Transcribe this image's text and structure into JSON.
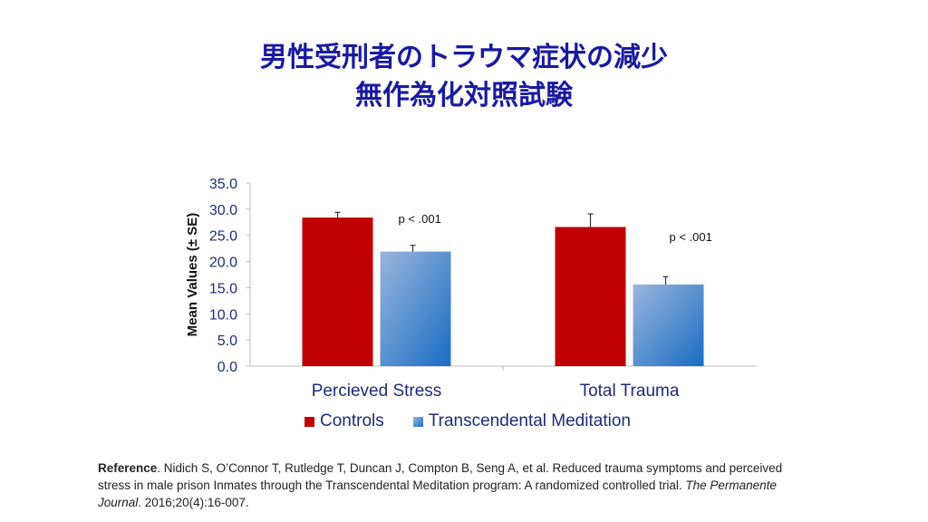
{
  "title_line1": "男性受刑者のトラウマ症状の減少",
  "title_line2": "無作為化対照試験",
  "chart_data": {
    "type": "bar",
    "categories": [
      "Percieved Stress",
      "Total Trauma"
    ],
    "series": [
      {
        "name": "Controls",
        "values": [
          28.4,
          26.6
        ],
        "error_upper": [
          29.4,
          29.1
        ],
        "color": "#c00000"
      },
      {
        "name": "Transcendental Meditation",
        "values": [
          21.9,
          15.6
        ],
        "error_upper": [
          23.1,
          17.1
        ],
        "color": "#4a86c8"
      }
    ],
    "ylabel": "Mean Values (± SE)",
    "ylim": [
      0,
      35
    ],
    "yticks": [
      "0.0",
      "5.0",
      "10.0",
      "15.0",
      "20.0",
      "25.0",
      "30.0",
      "35.0"
    ],
    "annotations": [
      "p < .001",
      "p < .001"
    ],
    "grid": false,
    "legend": "bottom"
  },
  "reference": {
    "label": "Reference",
    "text1": ". Nidich S, O’Connor T, Rutledge T, Duncan J, Compton B, Seng A, et al. Reduced trauma symptoms and perceived stress in male prison Inmates through the Transcendental Meditation program: A randomized controlled trial. ",
    "journal": "The Permanente Journal",
    "text2": ". 2016;20(4):16-007."
  }
}
